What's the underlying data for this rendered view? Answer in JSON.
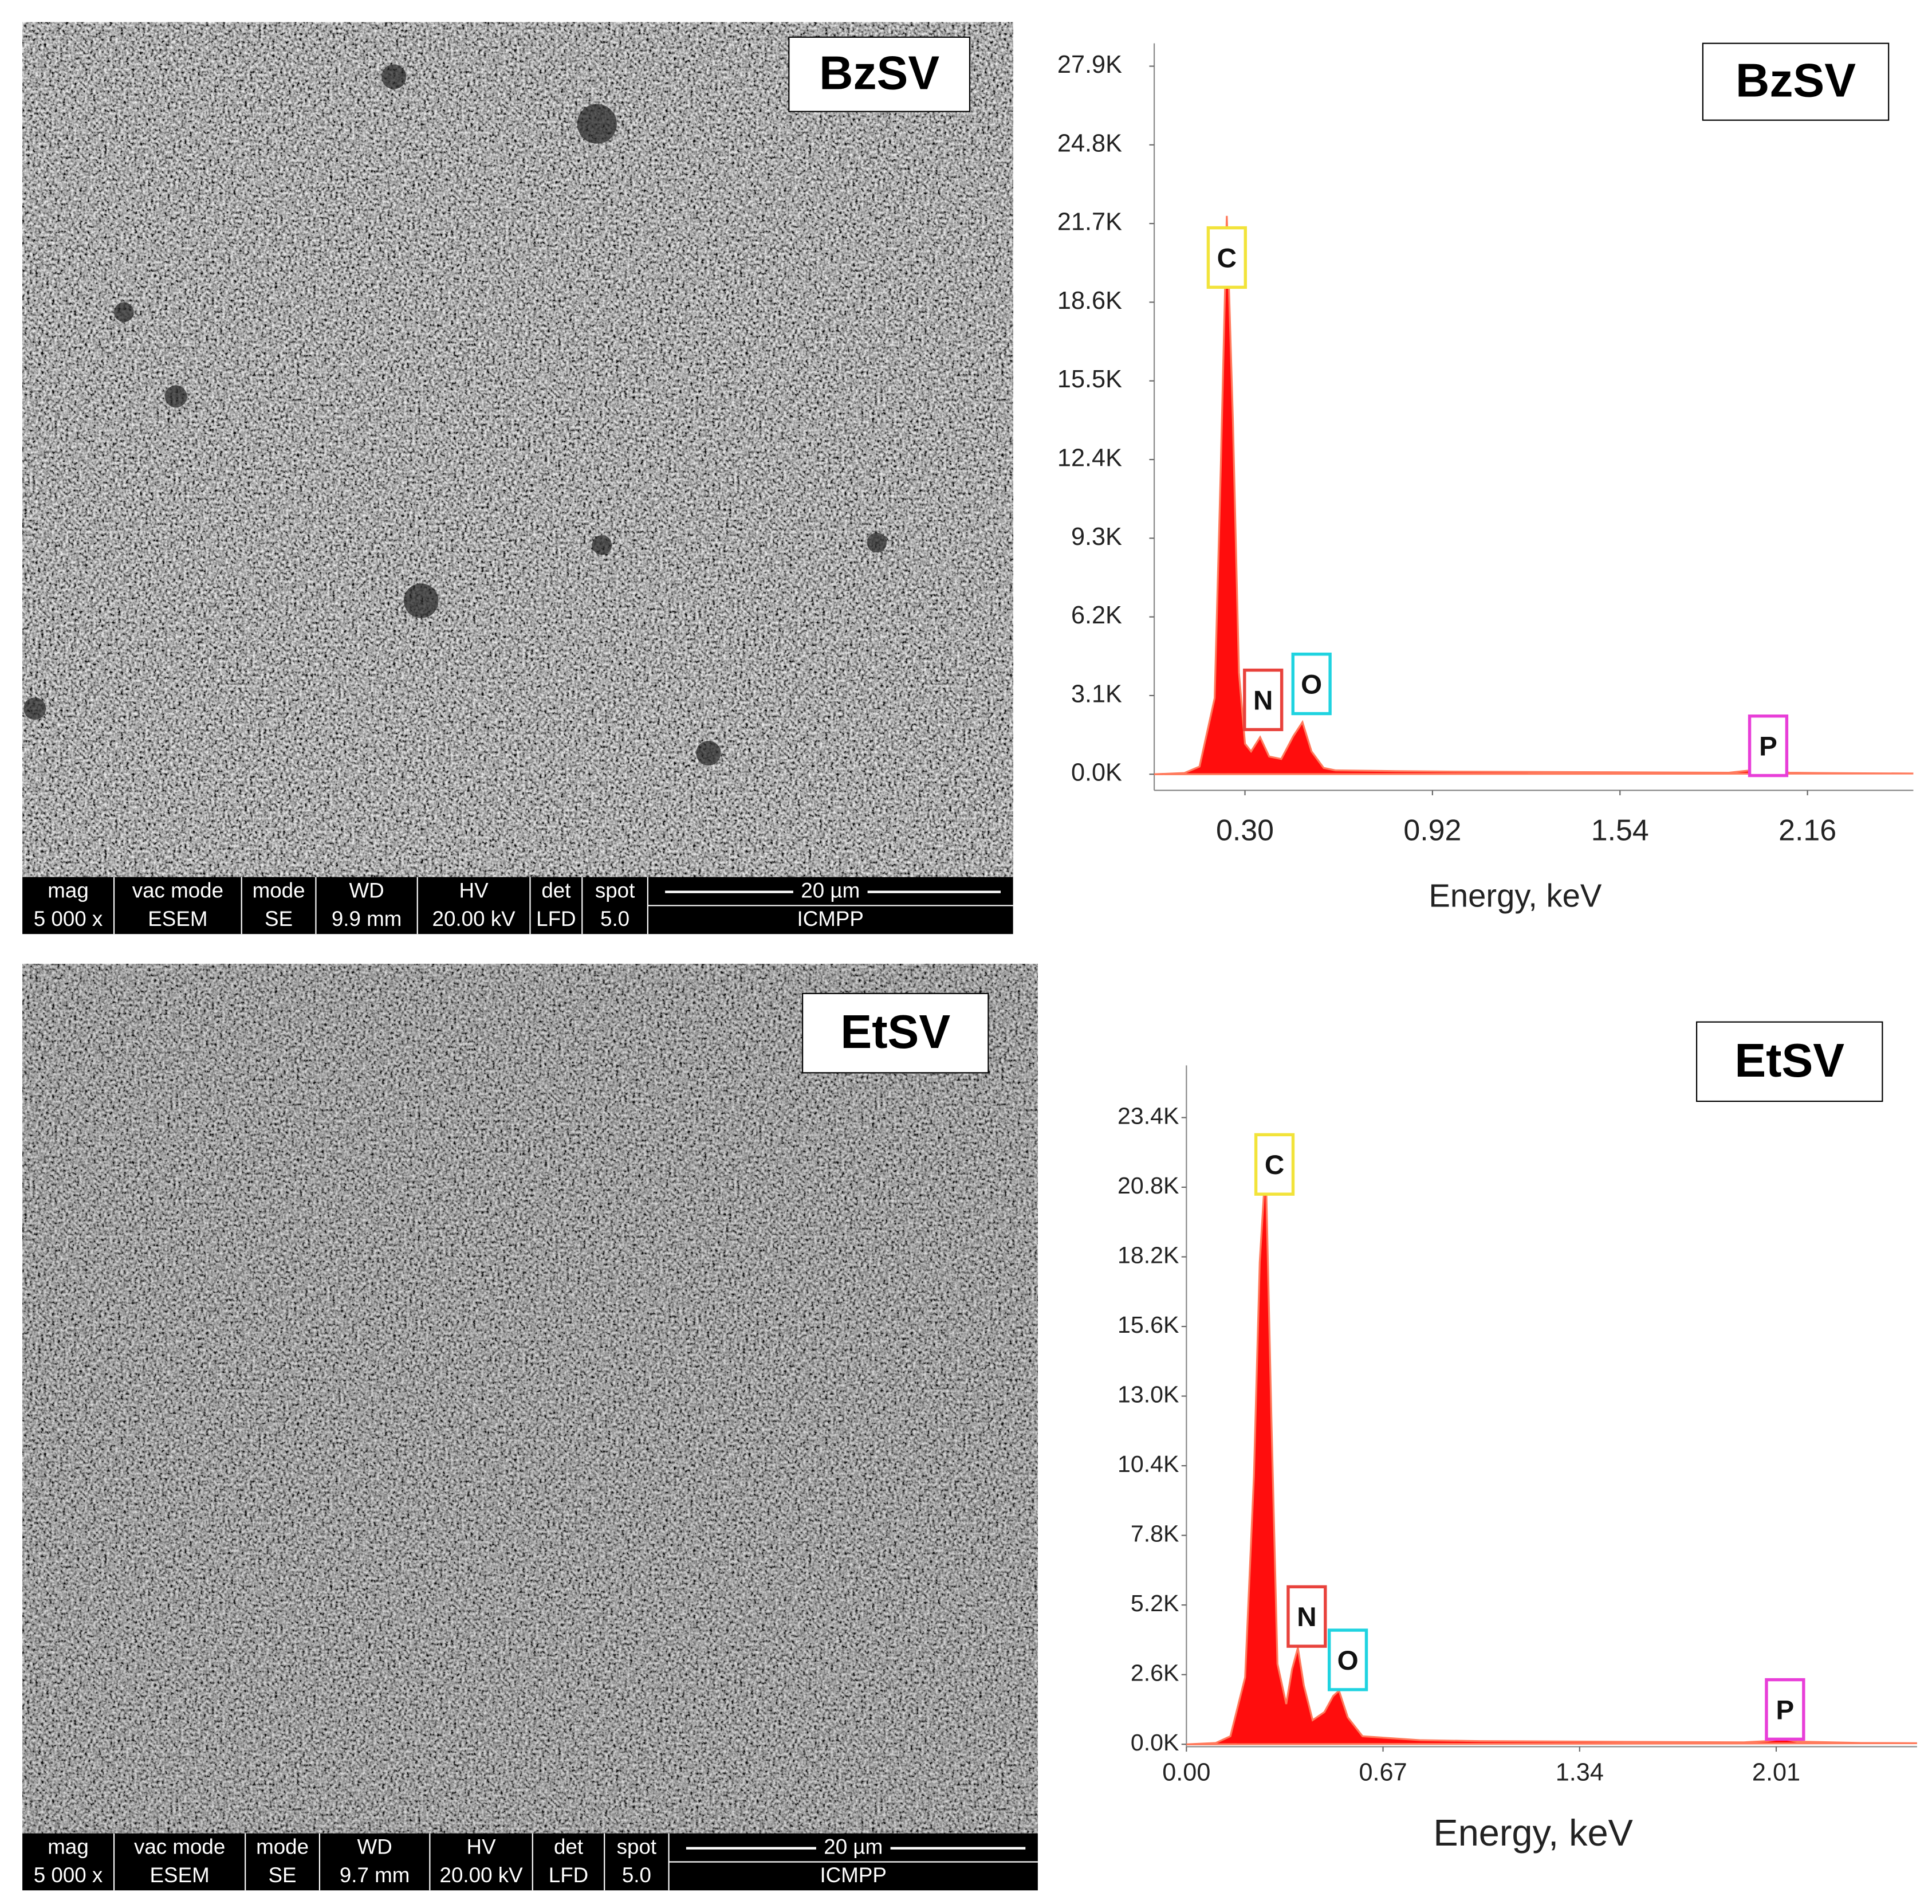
{
  "sem_images": [
    {
      "label": "BzSV",
      "headers": [
        "mag",
        "vac mode",
        "mode",
        "WD",
        "HV",
        "det",
        "spot"
      ],
      "values": [
        "5 000 x",
        "ESEM",
        "SE",
        "9.9 mm",
        "20.00 kV",
        "LFD",
        "5.0"
      ],
      "scale_bar": "20 µm",
      "institute": "ICMPP"
    },
    {
      "label": "EtSV",
      "headers": [
        "mag",
        "vac mode",
        "mode",
        "WD",
        "HV",
        "det",
        "spot"
      ],
      "values": [
        "5 000 x",
        "ESEM",
        "SE",
        "9.7 mm",
        "20.00 kV",
        "LFD",
        "5.0"
      ],
      "scale_bar": "20 µm",
      "institute": "ICMPP"
    }
  ],
  "chart_data": [
    {
      "type": "area",
      "title": "BzSV",
      "x_label": "Energy, keV",
      "color": "#ff0000",
      "x": [
        0,
        0.1,
        0.15,
        0.2,
        0.22,
        0.24,
        0.26,
        0.28,
        0.3,
        0.32,
        0.35,
        0.38,
        0.42,
        0.46,
        0.49,
        0.52,
        0.56,
        0.6,
        0.8,
        1.0,
        1.5,
        1.9,
        1.97,
        2.01,
        2.05,
        2.1,
        2.3,
        2.51
      ],
      "values": [
        0,
        50,
        300,
        3000,
        12000,
        22000,
        14000,
        4000,
        1200,
        900,
        1460,
        700,
        600,
        1500,
        2050,
        900,
        250,
        150,
        120,
        100,
        80,
        60,
        150,
        300,
        150,
        60,
        40,
        30
      ],
      "xlim": [
        0,
        2.51
      ],
      "xticks": [
        {
          "value": 0.3,
          "label": "0.30"
        },
        0.92,
        1.54,
        2.16
      ],
      "ylim": [
        -635,
        28800
      ],
      "yticks": [
        {
          "value": 0,
          "label": "0.0K"
        },
        {
          "value": 3100,
          "label": "3.1K"
        },
        {
          "value": 6200,
          "label": "6.2K"
        },
        {
          "value": 9300,
          "label": "9.3K"
        },
        {
          "value": 12400,
          "label": "12.4K"
        },
        {
          "value": 15500,
          "label": "15.5K"
        },
        {
          "value": 18600,
          "label": "18.6K"
        },
        {
          "value": 21700,
          "label": "21.7K"
        },
        {
          "value": 24800,
          "label": "24.8K"
        },
        {
          "value": 27900,
          "label": "27.9K"
        }
      ],
      "annotations": [
        {
          "text": "C",
          "x": 0.24,
          "y": 20360,
          "color": "#f2e33a"
        },
        {
          "text": "N",
          "x": 0.36,
          "y": 2930,
          "color": "#e8423c"
        },
        {
          "text": "O",
          "x": 0.52,
          "y": 3560,
          "color": "#1fd3e0"
        },
        {
          "text": "P",
          "x": 2.03,
          "y": 1120,
          "color": "#e83ed8"
        }
      ]
    },
    {
      "type": "area",
      "title": "EtSV",
      "x_label": "Energy, keV",
      "color": "#ff0000",
      "x": [
        0,
        0.1,
        0.15,
        0.2,
        0.23,
        0.25,
        0.27,
        0.29,
        0.31,
        0.34,
        0.36,
        0.38,
        0.4,
        0.43,
        0.47,
        0.5,
        0.52,
        0.55,
        0.6,
        0.8,
        1.0,
        1.5,
        1.9,
        1.98,
        2.03,
        2.08,
        2.3,
        2.49
      ],
      "values": [
        0,
        50,
        300,
        2500,
        10000,
        18000,
        21650,
        12000,
        3000,
        1500,
        2800,
        3600,
        2200,
        900,
        1200,
        1800,
        2000,
        1000,
        300,
        150,
        120,
        90,
        70,
        120,
        200,
        100,
        50,
        40
      ],
      "xlim": [
        0,
        2.49
      ],
      "xticks": [
        {
          "value": 0,
          "label": "0.00"
        },
        0.67,
        1.34,
        2.01
      ],
      "ylim": [
        -90,
        25350
      ],
      "yticks": [
        {
          "value": 0,
          "label": "0.0K"
        },
        {
          "value": 2600,
          "label": "2.6K"
        },
        {
          "value": 5200,
          "label": "5.2K"
        },
        {
          "value": 7800,
          "label": "7.8K"
        },
        {
          "value": 10400,
          "label": "10.4K"
        },
        {
          "value": 13000,
          "label": "13.0K"
        },
        {
          "value": 15600,
          "label": "15.6K"
        },
        {
          "value": 18200,
          "label": "18.2K"
        },
        {
          "value": 20800,
          "label": "20.8K"
        },
        {
          "value": 23400,
          "label": "23.4K"
        }
      ],
      "annotations": [
        {
          "text": "C",
          "x": 0.3,
          "y": 21650,
          "color": "#f2e33a"
        },
        {
          "text": "N",
          "x": 0.41,
          "y": 4770,
          "color": "#e8423c"
        },
        {
          "text": "O",
          "x": 0.55,
          "y": 3150,
          "color": "#1fd3e0"
        },
        {
          "text": "P",
          "x": 2.04,
          "y": 1300,
          "color": "#e83ed8"
        }
      ]
    }
  ]
}
